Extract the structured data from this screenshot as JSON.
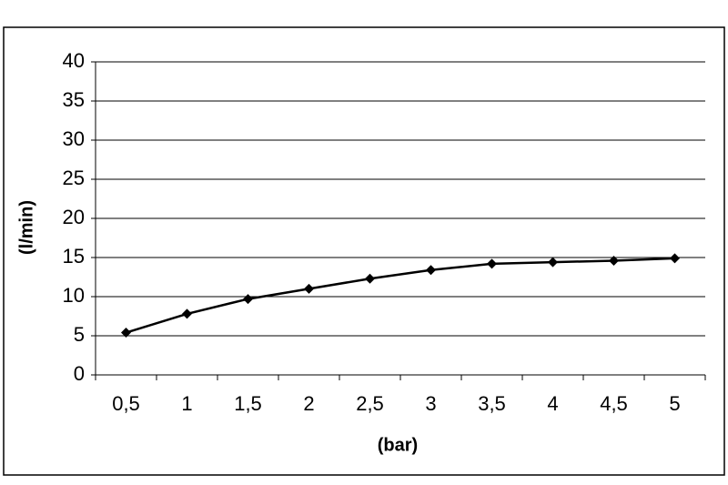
{
  "chart_data": {
    "type": "line",
    "x_label": "(bar)",
    "y_label": "(l/min)",
    "categories": [
      "0,5",
      "1",
      "1,5",
      "2",
      "2,5",
      "3",
      "3,5",
      "4",
      "4,5",
      "5"
    ],
    "series": [
      {
        "color": "#000000",
        "values": [
          5.4,
          7.8,
          9.7,
          11.0,
          12.3,
          13.4,
          14.2,
          14.4,
          14.6,
          14.9
        ]
      }
    ],
    "ylim": [
      0,
      40
    ],
    "yticks": [
      0,
      5,
      10,
      15,
      20,
      25,
      30,
      35,
      40
    ],
    "grid": true
  }
}
